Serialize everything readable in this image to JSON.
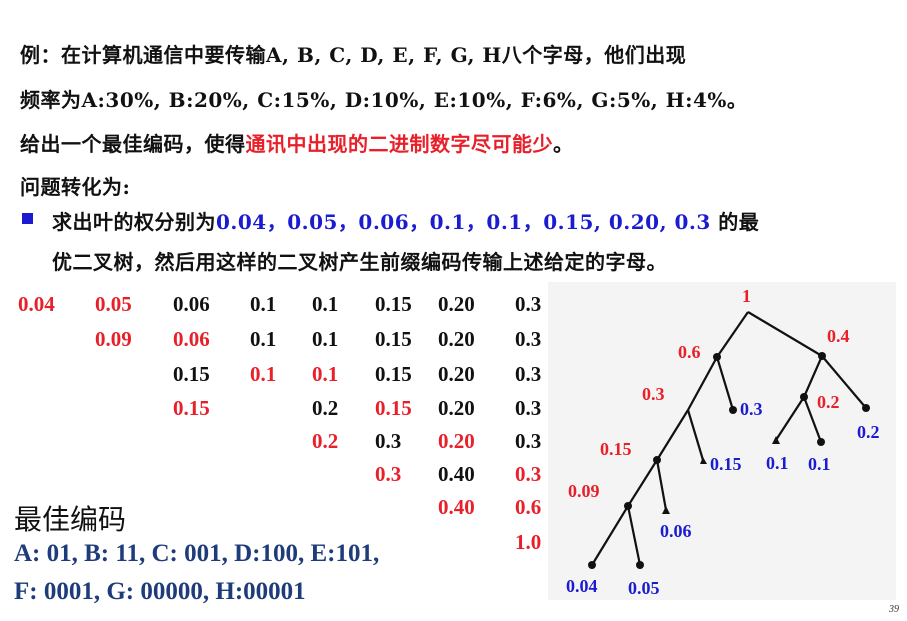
{
  "intro": {
    "line1": "例：在计算机通信中要传输A, B, C, D, E, F, G, H八个字母，他们出现",
    "line2": "频率为A:30%, B:20%, C:15%, D:10%, E:10%, F:6%, G:5%, H:4%。",
    "line3_a": "给出一个最佳编码，使得",
    "line3_red": "通讯中出现的二进制数字尽可能少",
    "line3_b": "。",
    "line4": "问题转化为:",
    "bullet_a": "求出叶的权分别为",
    "bullet_values": "0.04，0.05，0.06，0.1，0.1，0.15, 0.20, 0.3",
    "bullet_b": " 的最",
    "bullet_line2": "优二叉树，然后用这样的二叉树产生前缀编码传输上述给定的字母。"
  },
  "colors": {
    "red": "#e8202a",
    "blue": "#1b1bd0",
    "black": "#111111",
    "code": "#1f3c7a"
  },
  "merge_table": [
    [
      {
        "t": "0.04",
        "c": "red"
      },
      {
        "t": "0.05",
        "c": "red"
      },
      {
        "t": "0.06",
        "c": "black"
      },
      {
        "t": "0.1",
        "c": "black"
      },
      {
        "t": "0.1",
        "c": "black"
      },
      {
        "t": "0.15",
        "c": "black"
      },
      {
        "t": "0.20",
        "c": "black"
      },
      {
        "t": "0.3",
        "c": "black"
      }
    ],
    [
      {
        "t": "",
        "c": "black"
      },
      {
        "t": "0.09",
        "c": "red"
      },
      {
        "t": "0.06",
        "c": "red"
      },
      {
        "t": "0.1",
        "c": "black"
      },
      {
        "t": "0.1",
        "c": "black"
      },
      {
        "t": "0.15",
        "c": "black"
      },
      {
        "t": "0.20",
        "c": "black"
      },
      {
        "t": "0.3",
        "c": "black"
      }
    ],
    [
      {
        "t": "",
        "c": "black"
      },
      {
        "t": "",
        "c": "black"
      },
      {
        "t": "0.15",
        "c": "black"
      },
      {
        "t": "0.1",
        "c": "red"
      },
      {
        "t": "0.1",
        "c": "red"
      },
      {
        "t": "0.15",
        "c": "black"
      },
      {
        "t": "0.20",
        "c": "black"
      },
      {
        "t": "0.3",
        "c": "black"
      }
    ],
    [
      {
        "t": "",
        "c": "black"
      },
      {
        "t": "",
        "c": "black"
      },
      {
        "t": "0.15",
        "c": "red"
      },
      {
        "t": "",
        "c": "black"
      },
      {
        "t": "0.2",
        "c": "black"
      },
      {
        "t": "0.15",
        "c": "red"
      },
      {
        "t": "0.20",
        "c": "black"
      },
      {
        "t": "0.3",
        "c": "black"
      }
    ],
    [
      {
        "t": "",
        "c": "black"
      },
      {
        "t": "",
        "c": "black"
      },
      {
        "t": "",
        "c": "black"
      },
      {
        "t": "",
        "c": "black"
      },
      {
        "t": "0.2",
        "c": "red"
      },
      {
        "t": "0.3",
        "c": "black"
      },
      {
        "t": "0.20",
        "c": "red"
      },
      {
        "t": "0.3",
        "c": "black"
      }
    ],
    [
      {
        "t": "",
        "c": "black"
      },
      {
        "t": "",
        "c": "black"
      },
      {
        "t": "",
        "c": "black"
      },
      {
        "t": "",
        "c": "black"
      },
      {
        "t": "",
        "c": "black"
      },
      {
        "t": "0.3",
        "c": "red"
      },
      {
        "t": "0.40",
        "c": "black"
      },
      {
        "t": "0.3",
        "c": "red"
      }
    ],
    [
      {
        "t": "",
        "c": "black"
      },
      {
        "t": "",
        "c": "black"
      },
      {
        "t": "",
        "c": "black"
      },
      {
        "t": "",
        "c": "black"
      },
      {
        "t": "",
        "c": "black"
      },
      {
        "t": "",
        "c": "black"
      },
      {
        "t": "0.40",
        "c": "red"
      },
      {
        "t": "0.6",
        "c": "red"
      }
    ],
    [
      {
        "t": "",
        "c": "black"
      },
      {
        "t": "",
        "c": "black"
      },
      {
        "t": "",
        "c": "black"
      },
      {
        "t": "",
        "c": "black"
      },
      {
        "t": "",
        "c": "black"
      },
      {
        "t": "",
        "c": "black"
      },
      {
        "t": "",
        "c": "black"
      },
      {
        "t": "1.0",
        "c": "red"
      }
    ]
  ],
  "best_code": {
    "title": "最佳编码",
    "line1": "A: 01, B: 11, C: 001, D:100, E:101,",
    "line2": "F: 0001, G: 00000, H:00001"
  },
  "tree_labels": {
    "root": "1",
    "n06": "0.6",
    "n04": "0.4",
    "n03_inner": "0.3",
    "n03_leaf": "0.3",
    "n02_inner": "0.2",
    "n02_leaf": "0.2",
    "n015_inner": "0.15",
    "n015_leaf": "0.15",
    "n01_a": "0.1",
    "n01_b": "0.1",
    "n009": "0.09",
    "n006": "0.06",
    "n004": "0.04",
    "n005": "0.05"
  },
  "page_number": "39"
}
